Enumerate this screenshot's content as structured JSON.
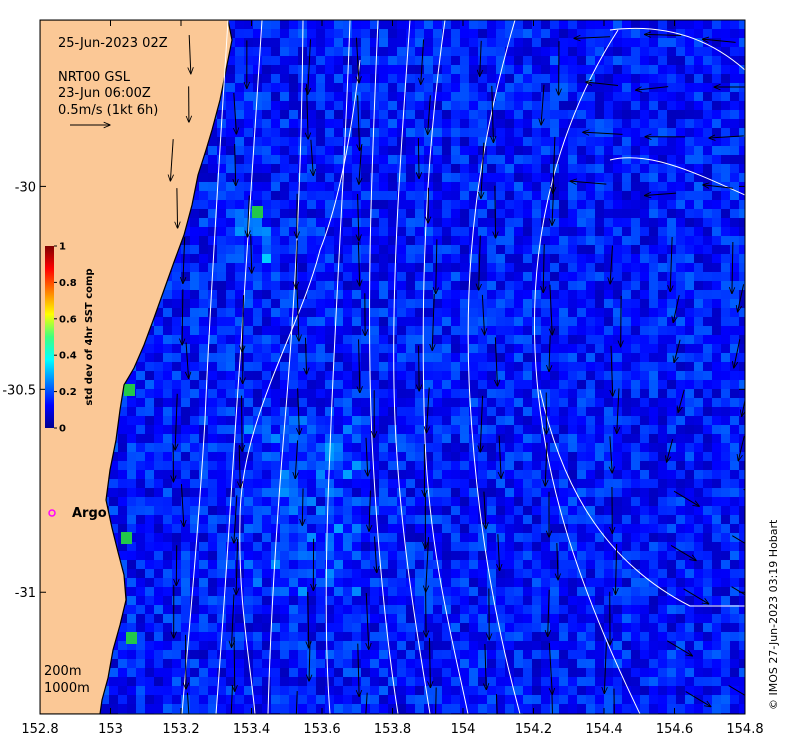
{
  "map": {
    "date_label": "25-Jun-2023 02Z",
    "product_label": "NRT00 GSL",
    "current_time_label": "23-Jun 06:00Z",
    "scale_label": "0.5m/s (1kt 6h)",
    "argo_label": "Argo",
    "isobath_200": "200m",
    "isobath_1000": "1000m",
    "credit": "© IMOS 27-Jun-2023 03:19 Hobart",
    "colors": {
      "land": "#fbc896",
      "contour": "#ffffff",
      "arrow": "#000000",
      "argo": "#ff00ff"
    },
    "colormap": "jet"
  },
  "axes": {
    "x_ticks": [
      "152.8",
      "153",
      "153.2",
      "153.4",
      "153.6",
      "153.8",
      "154",
      "154.2",
      "154.4",
      "154.6",
      "154.8"
    ],
    "y_ticks": [
      "-30",
      "-30.5",
      "-31"
    ],
    "x_range": [
      152.8,
      154.8
    ],
    "y_range": [
      -31.3,
      -29.59
    ]
  },
  "colorbar": {
    "label": "std dev of 4hr SST comp",
    "ticks": [
      "0",
      "0.2",
      "0.4",
      "0.6",
      "0.8",
      "1"
    ],
    "range": [
      0,
      1
    ]
  },
  "argo_float": {
    "lon": 152.83,
    "lat": -30.81
  },
  "current_vectors_sample": [
    {
      "lon": 153.6,
      "lat": -30.5,
      "u": 0.02,
      "v": -0.9
    },
    {
      "lon": 153.8,
      "lat": -30.5,
      "u": 0.0,
      "v": -1.0
    },
    {
      "lon": 154.0,
      "lat": -30.5,
      "u": 0.02,
      "v": -0.8
    },
    {
      "lon": 154.2,
      "lat": -30.2,
      "u": -0.1,
      "v": -0.4
    },
    {
      "lon": 154.6,
      "lat": -29.8,
      "u": -0.4,
      "v": 0.05
    }
  ]
}
